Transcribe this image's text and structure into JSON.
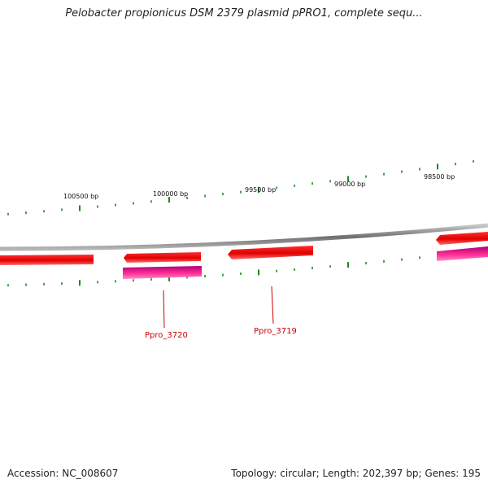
{
  "title": "Pelobacter propionicus DSM 2379 plasmid pPRO1, complete sequ...",
  "footer": {
    "accession": "Accession: NC_008607",
    "summary": "Topology: circular; Length: 202,397 bp; Genes: 195"
  },
  "colors": {
    "background": "#ffffff",
    "backbone": "#8a8a8a",
    "tick": "#1a8a1a",
    "gene_forward": "#ff0000",
    "gene_cds": "#ff3399",
    "gene_label": "#cc0000"
  },
  "ruler": {
    "labels": [
      "100500 bp",
      "100000 bp",
      "99500 bp",
      "99000 bp",
      "98500 bp"
    ]
  },
  "genes": {
    "labels": [
      "Ppro_3720",
      "Ppro_3719"
    ]
  }
}
